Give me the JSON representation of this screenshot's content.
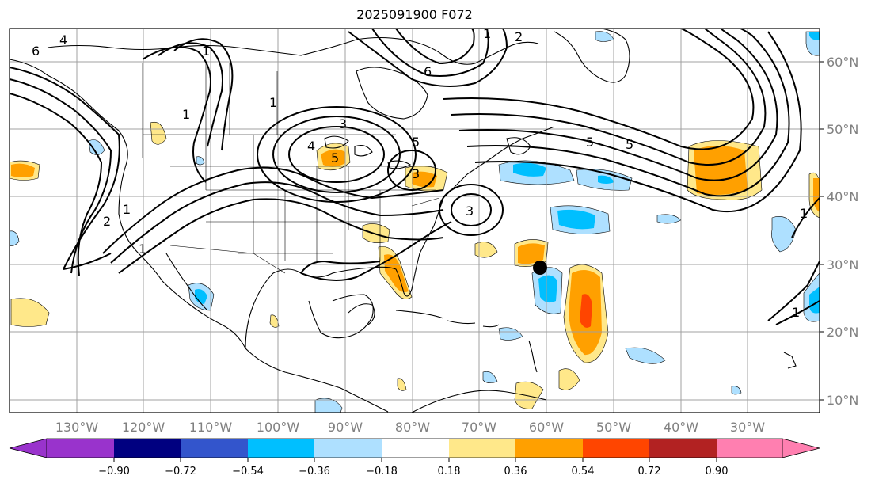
{
  "title": "2025091900 F072",
  "map": {
    "lat_ticks": [
      "60°N",
      "50°N",
      "40°N",
      "30°N",
      "20°N",
      "10°N"
    ],
    "lon_ticks": [
      "130°W",
      "120°W",
      "110°W",
      "100°W",
      "90°W",
      "80°W",
      "70°W",
      "60°W",
      "50°W",
      "40°W",
      "30°W"
    ],
    "contour_labels": [
      "6",
      "4",
      "1",
      "1",
      "1",
      "2",
      "1",
      "1",
      "3",
      "4",
      "5",
      "5",
      "3",
      "3",
      "6",
      "2",
      "5",
      "5",
      "1",
      "1",
      "1"
    ],
    "marker": "storm-center-dot"
  },
  "colorbar": {
    "labels": [
      "−0.90",
      "−0.72",
      "−0.54",
      "−0.36",
      "−0.18",
      "0.18",
      "0.36",
      "0.54",
      "0.72",
      "0.90"
    ],
    "colors": [
      "#9933cc",
      "#000080",
      "#3355cc",
      "#00bfff",
      "#aee0ff",
      "#ffffff",
      "#ffe88a",
      "#ffa000",
      "#ff4500",
      "#b22222",
      "#ff7fb0"
    ]
  }
}
